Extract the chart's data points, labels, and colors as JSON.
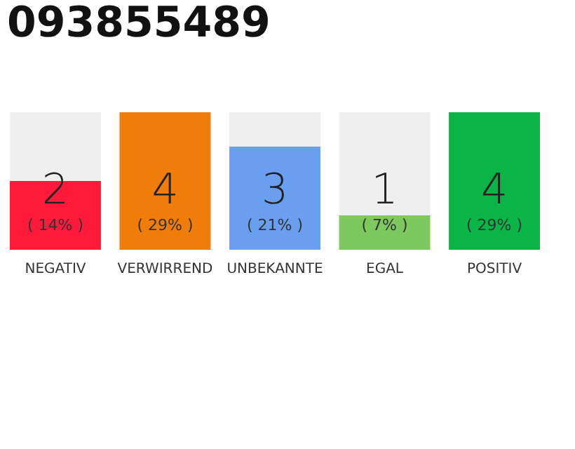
{
  "chart_data": {
    "type": "bar",
    "title": "093855489",
    "categories": [
      "NEGATIV",
      "VERWIRREND",
      "UNBEKANNTE",
      "EGAL",
      "POSITIV"
    ],
    "stacked": true,
    "ylim": [
      0,
      4
    ],
    "grid": false,
    "series": [
      {
        "colors": [
          "#ff1a3c",
          "#f07d0a",
          "#6a9ff0",
          "#7dc85f",
          "#0bb446"
        ],
        "values": [
          2,
          4,
          3,
          1,
          4
        ],
        "value_labels": [
          "2",
          "4",
          "3",
          "1",
          "4"
        ]
      },
      {
        "color": "#efefef",
        "values": [
          2,
          0,
          1,
          3,
          0
        ]
      }
    ],
    "annotations": [
      "( 14% )",
      "( 29% )",
      "( 21% )",
      "( 7% )",
      "( 29% )"
    ]
  }
}
